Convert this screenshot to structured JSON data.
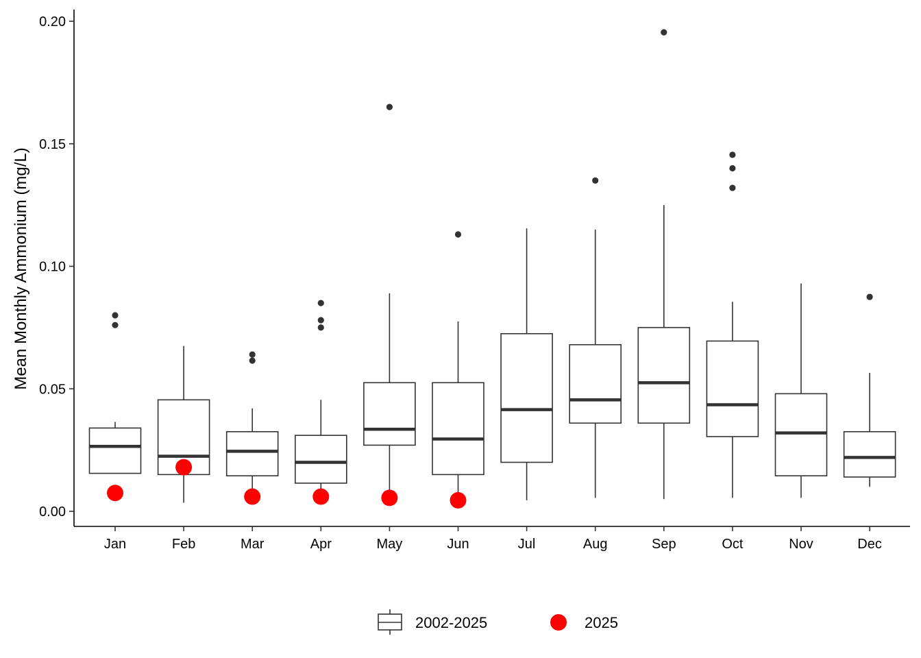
{
  "chart_data": {
    "type": "box",
    "ylabel": "Mean Monthly Ammonium (mg/L)",
    "xlabel": "",
    "ylim": [
      -0.006,
      0.205
    ],
    "yticks": [
      0.0,
      0.05,
      0.1,
      0.15,
      0.2
    ],
    "ytick_labels": [
      "0.00",
      "0.05",
      "0.10",
      "0.15",
      "0.20"
    ],
    "grid": false,
    "legend_position": "bottom",
    "categories": [
      "Jan",
      "Feb",
      "Mar",
      "Apr",
      "May",
      "Jun",
      "Jul",
      "Aug",
      "Sep",
      "Oct",
      "Nov",
      "Dec"
    ],
    "series": [
      {
        "name": "2002-2025",
        "kind": "boxplot",
        "color": "#333333",
        "boxes": [
          {
            "min": 0.0155,
            "q1": 0.0155,
            "median": 0.0265,
            "q3": 0.034,
            "max": 0.0365,
            "outliers": [
              0.08,
              0.076
            ]
          },
          {
            "min": 0.0035,
            "q1": 0.015,
            "median": 0.0225,
            "q3": 0.0455,
            "max": 0.0675,
            "outliers": []
          },
          {
            "min": 0.0065,
            "q1": 0.0145,
            "median": 0.0245,
            "q3": 0.0325,
            "max": 0.042,
            "outliers": [
              0.064,
              0.0615
            ]
          },
          {
            "min": 0.006,
            "q1": 0.0115,
            "median": 0.02,
            "q3": 0.031,
            "max": 0.0455,
            "outliers": [
              0.085,
              0.078,
              0.075
            ]
          },
          {
            "min": 0.0045,
            "q1": 0.027,
            "median": 0.0335,
            "q3": 0.0525,
            "max": 0.089,
            "outliers": [
              0.165
            ]
          },
          {
            "min": 0.003,
            "q1": 0.015,
            "median": 0.0295,
            "q3": 0.0525,
            "max": 0.0775,
            "outliers": [
              0.113
            ]
          },
          {
            "min": 0.0045,
            "q1": 0.02,
            "median": 0.0415,
            "q3": 0.0725,
            "max": 0.1155,
            "outliers": []
          },
          {
            "min": 0.0055,
            "q1": 0.036,
            "median": 0.0455,
            "q3": 0.068,
            "max": 0.115,
            "outliers": [
              0.135
            ]
          },
          {
            "min": 0.005,
            "q1": 0.036,
            "median": 0.0525,
            "q3": 0.075,
            "max": 0.125,
            "outliers": [
              0.1955
            ]
          },
          {
            "min": 0.0055,
            "q1": 0.0305,
            "median": 0.0435,
            "q3": 0.0695,
            "max": 0.0855,
            "outliers": [
              0.1455,
              0.14,
              0.132
            ]
          },
          {
            "min": 0.0055,
            "q1": 0.0145,
            "median": 0.032,
            "q3": 0.048,
            "max": 0.093,
            "outliers": []
          },
          {
            "min": 0.01,
            "q1": 0.014,
            "median": 0.022,
            "q3": 0.0325,
            "max": 0.0565,
            "outliers": [
              0.0875
            ]
          }
        ]
      },
      {
        "name": "2025",
        "kind": "point",
        "color": "#FF0000",
        "values": [
          0.0075,
          0.018,
          0.006,
          0.006,
          0.0055,
          0.0045,
          null,
          null,
          null,
          null,
          null,
          null
        ]
      }
    ]
  }
}
